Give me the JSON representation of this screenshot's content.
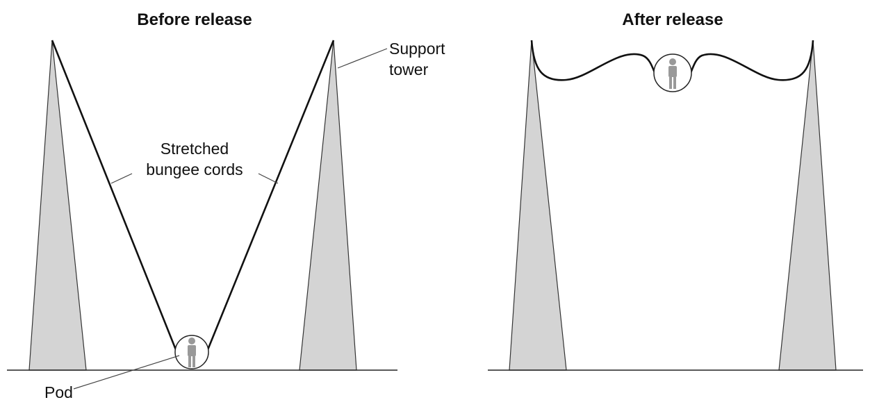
{
  "before": {
    "title": "Before release",
    "support_tower": [
      "Support",
      "tower"
    ],
    "cords": [
      "Stretched",
      "bungee cords"
    ],
    "pod": "Pod"
  },
  "after": {
    "title": "After release"
  }
}
